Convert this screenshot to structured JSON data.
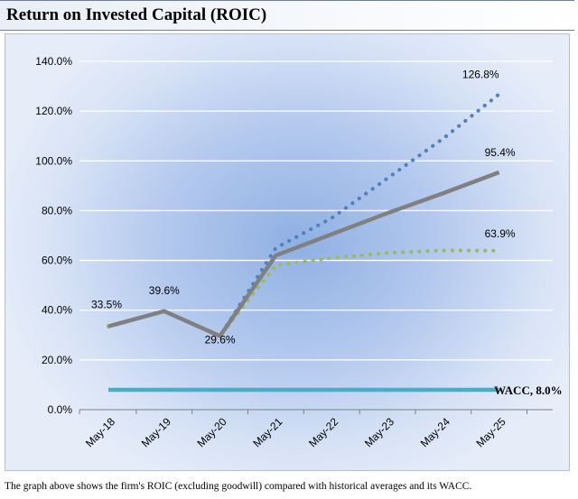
{
  "header": {
    "title": "Return on Invested Capital (ROIC)"
  },
  "footnote": "The graph above shows the firm's ROIC (excluding goodwill) compared with historical averages and its WACC.",
  "chart_data": {
    "type": "line",
    "categories": [
      "May-18",
      "May-19",
      "May-20",
      "May-21",
      "May-22",
      "May-23",
      "May-24",
      "May-25"
    ],
    "ylim": [
      0,
      140
    ],
    "y_ticks": [
      0,
      20,
      40,
      60,
      80,
      100,
      120,
      140
    ],
    "y_tick_labels": [
      "0.0%",
      "20.0%",
      "40.0%",
      "60.0%",
      "80.0%",
      "100.0%",
      "120.0%",
      "140.0%"
    ],
    "grid": "horizontal",
    "legend": "none",
    "series": [
      {
        "style": "dotted",
        "color": "#4f81bd",
        "values": [
          33.5,
          39.6,
          29.6,
          65.0,
          77.0,
          93.0,
          109.0,
          126.8
        ]
      },
      {
        "style": "dotted",
        "color": "#9bbb59",
        "values": [
          33.5,
          39.6,
          29.6,
          58.0,
          61.0,
          63.0,
          64.0,
          63.9
        ]
      },
      {
        "style": "solid",
        "color": "#808080",
        "values": [
          33.5,
          39.6,
          29.6,
          62.0,
          70.5,
          79.0,
          87.0,
          95.4
        ]
      },
      {
        "style": "solid",
        "color": "#4bacc6",
        "values": [
          8.0,
          8.0,
          8.0,
          8.0,
          8.0,
          8.0,
          8.0,
          8.0
        ]
      }
    ],
    "data_labels": [
      {
        "category": "May-18",
        "value": 33.5,
        "text": "33.5%"
      },
      {
        "category": "May-19",
        "value": 39.6,
        "text": "39.6%"
      },
      {
        "category": "May-20",
        "value": 29.6,
        "text": "29.6%"
      },
      {
        "category": "May-25",
        "value": 126.8,
        "text": "126.8%"
      },
      {
        "category": "May-25",
        "value": 95.4,
        "text": "95.4%"
      },
      {
        "category": "May-25",
        "value": 63.9,
        "text": "63.9%"
      },
      {
        "category": "May-25",
        "value": 8.0,
        "text": "WACC, 8.0%"
      }
    ]
  }
}
